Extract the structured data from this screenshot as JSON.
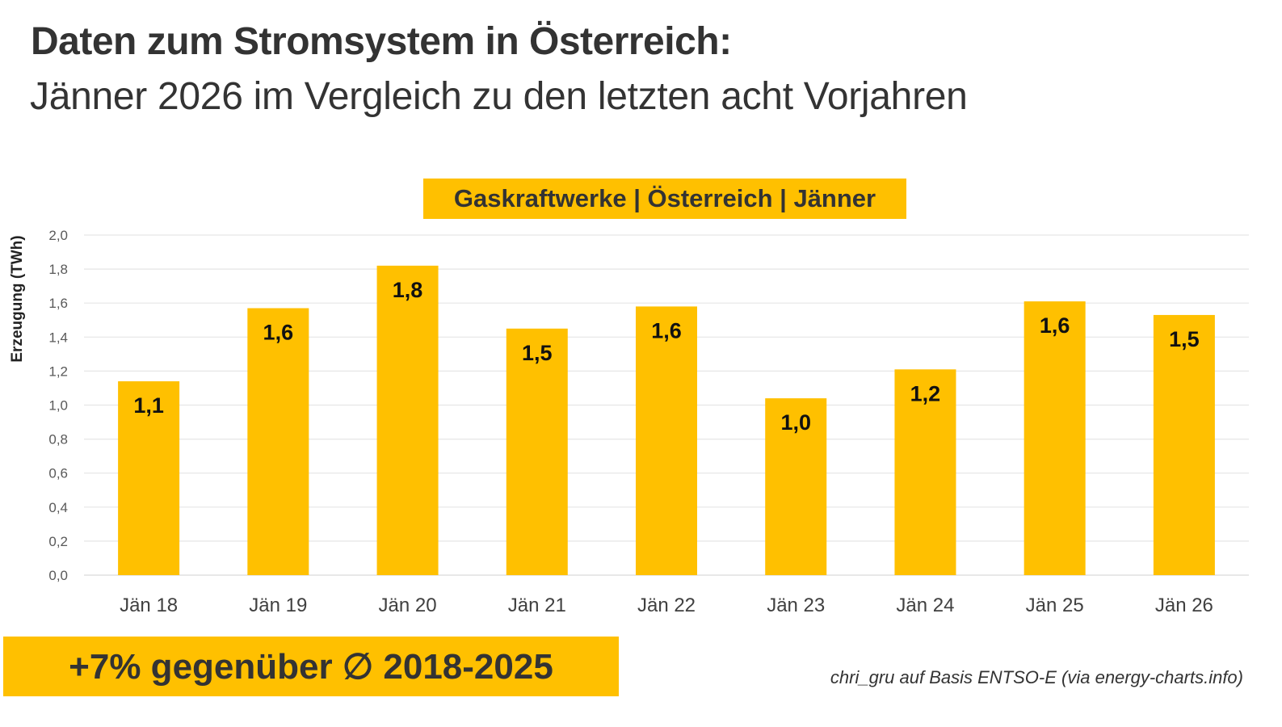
{
  "header": {
    "title": "Daten zum Stromsystem in Österreich:",
    "subtitle": "Jänner 2026 im Vergleich zu den letzten acht Vorjahren"
  },
  "callout": {
    "text": "+7% gegenüber ∅ 2018-2025"
  },
  "source": {
    "text": "chri_gru auf Basis ENTSO-E (via energy-charts.info)"
  },
  "colors": {
    "bar": "#FFC000",
    "text": "#333333",
    "grid": "#E6E6E6"
  },
  "chart_data": {
    "type": "bar",
    "title": "Gaskraftwerke | Österreich | Jänner",
    "xlabel": "",
    "ylabel": "Erzeugung (TWh)",
    "categories": [
      "Jän 18",
      "Jän 19",
      "Jän 20",
      "Jän 21",
      "Jän 22",
      "Jän 23",
      "Jän 24",
      "Jän 25",
      "Jän 26"
    ],
    "values": [
      1.14,
      1.57,
      1.82,
      1.45,
      1.58,
      1.04,
      1.21,
      1.61,
      1.53
    ],
    "data_labels": [
      "1,1",
      "1,6",
      "1,8",
      "1,5",
      "1,6",
      "1,0",
      "1,2",
      "1,6",
      "1,5"
    ],
    "ylim": [
      0,
      2.0
    ],
    "yticks": [
      0,
      0.2,
      0.4,
      0.6,
      0.8,
      1.0,
      1.2,
      1.4,
      1.6,
      1.8,
      2.0
    ],
    "ytick_labels": [
      "0,0",
      "0,2",
      "0,4",
      "0,6",
      "0,8",
      "1,0",
      "1,2",
      "1,4",
      "1,6",
      "1,8",
      "2,0"
    ],
    "grid": true,
    "legend": "none"
  }
}
